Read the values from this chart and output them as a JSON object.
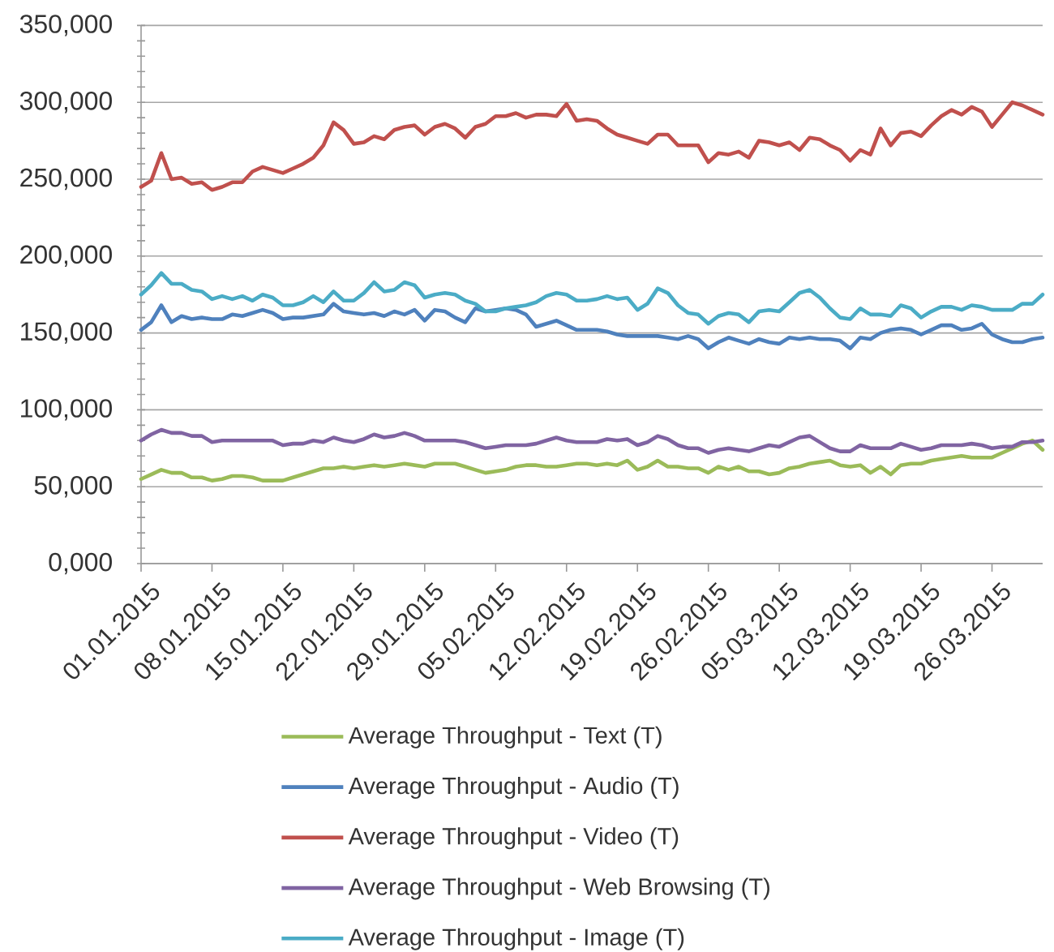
{
  "chart_data": {
    "type": "line",
    "x": [
      "2015-01-01",
      "2015-01-02",
      "2015-01-03",
      "2015-01-04",
      "2015-01-05",
      "2015-01-06",
      "2015-01-07",
      "2015-01-08",
      "2015-01-09",
      "2015-01-10",
      "2015-01-11",
      "2015-01-12",
      "2015-01-13",
      "2015-01-14",
      "2015-01-15",
      "2015-01-16",
      "2015-01-17",
      "2015-01-18",
      "2015-01-19",
      "2015-01-20",
      "2015-01-21",
      "2015-01-22",
      "2015-01-23",
      "2015-01-24",
      "2015-01-25",
      "2015-01-26",
      "2015-01-27",
      "2015-01-28",
      "2015-01-29",
      "2015-01-30",
      "2015-01-31",
      "2015-02-01",
      "2015-02-02",
      "2015-02-03",
      "2015-02-04",
      "2015-02-05",
      "2015-02-06",
      "2015-02-07",
      "2015-02-08",
      "2015-02-09",
      "2015-02-10",
      "2015-02-11",
      "2015-02-12",
      "2015-02-13",
      "2015-02-14",
      "2015-02-15",
      "2015-02-16",
      "2015-02-17",
      "2015-02-18",
      "2015-02-19",
      "2015-02-20",
      "2015-02-21",
      "2015-02-22",
      "2015-02-23",
      "2015-02-24",
      "2015-02-25",
      "2015-02-26",
      "2015-02-27",
      "2015-02-28",
      "2015-03-01",
      "2015-03-02",
      "2015-03-03",
      "2015-03-04",
      "2015-03-05",
      "2015-03-06",
      "2015-03-07",
      "2015-03-08",
      "2015-03-09",
      "2015-03-10",
      "2015-03-11",
      "2015-03-12",
      "2015-03-13",
      "2015-03-14",
      "2015-03-15",
      "2015-03-16",
      "2015-03-17",
      "2015-03-18",
      "2015-03-19",
      "2015-03-20",
      "2015-03-21",
      "2015-03-22",
      "2015-03-23",
      "2015-03-24",
      "2015-03-25",
      "2015-03-26",
      "2015-03-27",
      "2015-03-28",
      "2015-03-29",
      "2015-03-30",
      "2015-03-31"
    ],
    "series": [
      {
        "name": "Average Throughput - Text (T)",
        "color": "#9bbb59",
        "values": [
          55000,
          58000,
          61000,
          59000,
          59000,
          56000,
          56000,
          54000,
          55000,
          57000,
          57000,
          56000,
          54000,
          54000,
          54000,
          56000,
          58000,
          60000,
          62000,
          62000,
          63000,
          62000,
          63000,
          64000,
          63000,
          64000,
          65000,
          64000,
          63000,
          65000,
          65000,
          65000,
          63000,
          61000,
          59000,
          60000,
          61000,
          63000,
          64000,
          64000,
          63000,
          63000,
          64000,
          65000,
          65000,
          64000,
          65000,
          64000,
          67000,
          61000,
          63000,
          67000,
          63000,
          63000,
          62000,
          62000,
          59000,
          63000,
          61000,
          63000,
          60000,
          60000,
          58000,
          59000,
          62000,
          63000,
          65000,
          66000,
          67000,
          64000,
          63000,
          64000,
          59000,
          63000,
          58000,
          64000,
          65000,
          65000,
          67000,
          68000,
          69000,
          70000,
          69000,
          69000,
          69000,
          72000,
          75000,
          78000,
          80000,
          74000
        ]
      },
      {
        "name": "Average Throughput - Audio (T)",
        "color": "#4f81bd",
        "values": [
          152000,
          157000,
          168000,
          157000,
          161000,
          159000,
          160000,
          159000,
          159000,
          162000,
          161000,
          163000,
          165000,
          163000,
          159000,
          160000,
          160000,
          161000,
          162000,
          169000,
          164000,
          163000,
          162000,
          163000,
          161000,
          164000,
          162000,
          165000,
          158000,
          165000,
          164000,
          160000,
          157000,
          166000,
          164000,
          165000,
          166000,
          165000,
          162000,
          154000,
          156000,
          158000,
          155000,
          152000,
          152000,
          152000,
          151000,
          149000,
          148000,
          148000,
          148000,
          148000,
          147000,
          146000,
          148000,
          146000,
          140000,
          144000,
          147000,
          145000,
          143000,
          146000,
          144000,
          143000,
          147000,
          146000,
          147000,
          146000,
          146000,
          145000,
          140000,
          147000,
          146000,
          150000,
          152000,
          153000,
          152000,
          149000,
          152000,
          155000,
          155000,
          152000,
          153000,
          156000,
          149000,
          146000,
          144000,
          144000,
          146000,
          147000
        ]
      },
      {
        "name": "Average Throughput - Video (T)",
        "color": "#c0504d",
        "values": [
          245000,
          249000,
          267000,
          250000,
          251000,
          247000,
          248000,
          243000,
          245000,
          248000,
          248000,
          255000,
          258000,
          256000,
          254000,
          257000,
          260000,
          264000,
          272000,
          287000,
          282000,
          273000,
          274000,
          278000,
          276000,
          282000,
          284000,
          285000,
          279000,
          284000,
          286000,
          283000,
          277000,
          284000,
          286000,
          291000,
          291000,
          293000,
          290000,
          292000,
          292000,
          291000,
          299000,
          288000,
          289000,
          288000,
          283000,
          279000,
          277000,
          275000,
          273000,
          279000,
          279000,
          272000,
          272000,
          272000,
          261000,
          267000,
          266000,
          268000,
          264000,
          275000,
          274000,
          272000,
          274000,
          269000,
          277000,
          276000,
          272000,
          269000,
          262000,
          269000,
          266000,
          283000,
          272000,
          280000,
          281000,
          278000,
          285000,
          291000,
          295000,
          292000,
          297000,
          294000,
          284000,
          292000,
          300000,
          298000,
          295000,
          292000
        ]
      },
      {
        "name": "Average Throughput - Web Browsing (T)",
        "color": "#8064a2",
        "values": [
          80000,
          84000,
          87000,
          85000,
          85000,
          83000,
          83000,
          79000,
          80000,
          80000,
          80000,
          80000,
          80000,
          80000,
          77000,
          78000,
          78000,
          80000,
          79000,
          82000,
          80000,
          79000,
          81000,
          84000,
          82000,
          83000,
          85000,
          83000,
          80000,
          80000,
          80000,
          80000,
          79000,
          77000,
          75000,
          76000,
          77000,
          77000,
          77000,
          78000,
          80000,
          82000,
          80000,
          79000,
          79000,
          79000,
          81000,
          80000,
          81000,
          77000,
          79000,
          83000,
          81000,
          77000,
          75000,
          75000,
          72000,
          74000,
          75000,
          74000,
          73000,
          75000,
          77000,
          76000,
          79000,
          82000,
          83000,
          79000,
          75000,
          73000,
          73000,
          77000,
          75000,
          75000,
          75000,
          78000,
          76000,
          74000,
          75000,
          77000,
          77000,
          77000,
          78000,
          77000,
          75000,
          76000,
          76000,
          79000,
          79000,
          80000
        ]
      },
      {
        "name": "Average Throughput - Image (T)",
        "color": "#4bacc6",
        "values": [
          175000,
          181000,
          189000,
          182000,
          182000,
          178000,
          177000,
          172000,
          174000,
          172000,
          174000,
          171000,
          175000,
          173000,
          168000,
          168000,
          170000,
          174000,
          170000,
          177000,
          171000,
          171000,
          176000,
          183000,
          177000,
          178000,
          183000,
          181000,
          173000,
          175000,
          176000,
          175000,
          171000,
          169000,
          164000,
          164000,
          166000,
          167000,
          168000,
          170000,
          174000,
          176000,
          175000,
          171000,
          171000,
          172000,
          174000,
          172000,
          173000,
          165000,
          169000,
          179000,
          176000,
          168000,
          163000,
          162000,
          156000,
          161000,
          163000,
          162000,
          157000,
          164000,
          165000,
          164000,
          170000,
          176000,
          178000,
          173000,
          166000,
          160000,
          159000,
          166000,
          162000,
          162000,
          161000,
          168000,
          166000,
          160000,
          164000,
          167000,
          167000,
          165000,
          168000,
          167000,
          165000,
          165000,
          165000,
          169000,
          169000,
          175000
        ]
      }
    ],
    "xlim": [
      "2015-01-01",
      "2015-03-31"
    ],
    "xticks": [
      {
        "value": "2015-01-01",
        "label": "01.01.2015"
      },
      {
        "value": "2015-01-08",
        "label": "08.01.2015"
      },
      {
        "value": "2015-01-15",
        "label": "15.01.2015"
      },
      {
        "value": "2015-01-22",
        "label": "22.01.2015"
      },
      {
        "value": "2015-01-29",
        "label": "29.01.2015"
      },
      {
        "value": "2015-02-05",
        "label": "05.02.2015"
      },
      {
        "value": "2015-02-12",
        "label": "12.02.2015"
      },
      {
        "value": "2015-02-19",
        "label": "19.02.2015"
      },
      {
        "value": "2015-02-26",
        "label": "26.02.2015"
      },
      {
        "value": "2015-03-05",
        "label": "05.03.2015"
      },
      {
        "value": "2015-03-12",
        "label": "12.03.2015"
      },
      {
        "value": "2015-03-19",
        "label": "19.03.2015"
      },
      {
        "value": "2015-03-26",
        "label": "26.03.2015"
      }
    ],
    "ylim": [
      0,
      350000
    ],
    "yticks": [
      {
        "value": 0,
        "label": "0,000"
      },
      {
        "value": 50000,
        "label": "50,000"
      },
      {
        "value": 100000,
        "label": "100,000"
      },
      {
        "value": 150000,
        "label": "150,000"
      },
      {
        "value": 200000,
        "label": "200,000"
      },
      {
        "value": 250000,
        "label": "250,000"
      },
      {
        "value": 300000,
        "label": "300,000"
      },
      {
        "value": 350000,
        "label": "350,000"
      }
    ],
    "grid": "y",
    "legend": "bottom"
  }
}
